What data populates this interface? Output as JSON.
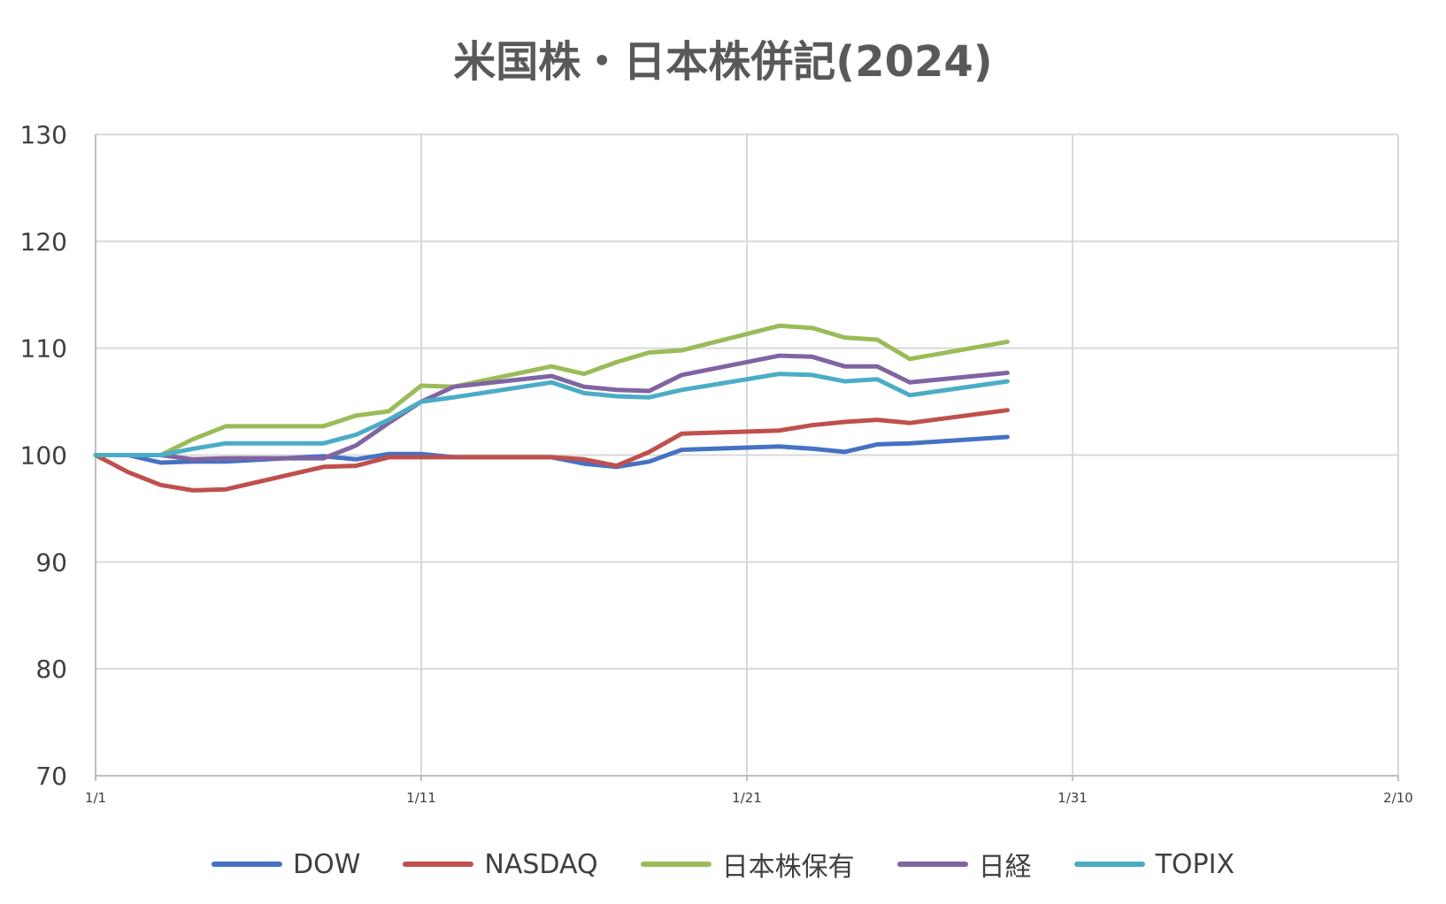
{
  "chart_data": {
    "type": "line",
    "title": "米国株・日本株併記(2024)",
    "xlabel": "",
    "ylabel": "",
    "ylim": [
      70,
      130
    ],
    "yticks": [
      70,
      80,
      90,
      100,
      110,
      120,
      130
    ],
    "xlim": [
      1,
      41
    ],
    "xticks": [
      {
        "day": 1,
        "label": "1/1"
      },
      {
        "day": 11,
        "label": "1/11"
      },
      {
        "day": 21,
        "label": "1/21"
      },
      {
        "day": 31,
        "label": "1/31"
      },
      {
        "day": 41,
        "label": "2/10"
      }
    ],
    "grid": true,
    "legend_position": "bottom",
    "series": [
      {
        "name": "DOW",
        "color": "#4472C4",
        "x": [
          1,
          2,
          3,
          4,
          5,
          8,
          9,
          10,
          11,
          12,
          15,
          16,
          17,
          18,
          19,
          22,
          23,
          24,
          25,
          26,
          29
        ],
        "y": [
          100,
          100,
          99.3,
          99.4,
          99.4,
          99.9,
          99.6,
          100.1,
          100.1,
          99.8,
          99.8,
          99.2,
          98.9,
          99.4,
          100.5,
          100.8,
          100.6,
          100.3,
          101,
          101.1,
          101.7
        ]
      },
      {
        "name": "NASDAQ",
        "color": "#C0504D",
        "x": [
          1,
          2,
          3,
          4,
          5,
          8,
          9,
          10,
          11,
          12,
          15,
          16,
          17,
          18,
          19,
          22,
          23,
          24,
          25,
          26,
          29
        ],
        "y": [
          100,
          98.4,
          97.2,
          96.7,
          96.8,
          98.9,
          99,
          99.8,
          99.8,
          99.8,
          99.8,
          99.6,
          99,
          100.3,
          102,
          102.3,
          102.8,
          103.1,
          103.3,
          103,
          104.2
        ]
      },
      {
        "name": "日本株保有",
        "color": "#9BBB59",
        "x": [
          1,
          2,
          3,
          4,
          5,
          8,
          9,
          10,
          11,
          12,
          15,
          16,
          17,
          18,
          19,
          22,
          23,
          24,
          25,
          26,
          29
        ],
        "y": [
          100,
          100,
          100,
          101.5,
          102.7,
          102.7,
          103.7,
          104.1,
          106.5,
          106.4,
          108.3,
          107.6,
          108.7,
          109.6,
          109.8,
          112.1,
          111.9,
          111,
          110.8,
          109,
          110.6
        ]
      },
      {
        "name": "日経",
        "color": "#8064A2",
        "x": [
          1,
          2,
          3,
          4,
          5,
          8,
          9,
          10,
          11,
          12,
          15,
          16,
          17,
          18,
          19,
          22,
          23,
          24,
          25,
          26,
          29
        ],
        "y": [
          100,
          100,
          100,
          99.6,
          99.7,
          99.7,
          100.9,
          103,
          105,
          106.4,
          107.4,
          106.4,
          106.1,
          106,
          107.5,
          109.3,
          109.2,
          108.3,
          108.3,
          106.8,
          107.7
        ]
      },
      {
        "name": "TOPIX",
        "color": "#4BACC6",
        "x": [
          1,
          2,
          3,
          4,
          5,
          8,
          9,
          10,
          11,
          12,
          15,
          16,
          17,
          18,
          19,
          22,
          23,
          24,
          25,
          26,
          29
        ],
        "y": [
          100,
          100,
          100,
          100.6,
          101.1,
          101.1,
          101.9,
          103.3,
          105,
          105.4,
          106.8,
          105.8,
          105.5,
          105.4,
          106.1,
          107.6,
          107.5,
          106.9,
          107.1,
          105.6,
          106.9
        ]
      }
    ]
  }
}
